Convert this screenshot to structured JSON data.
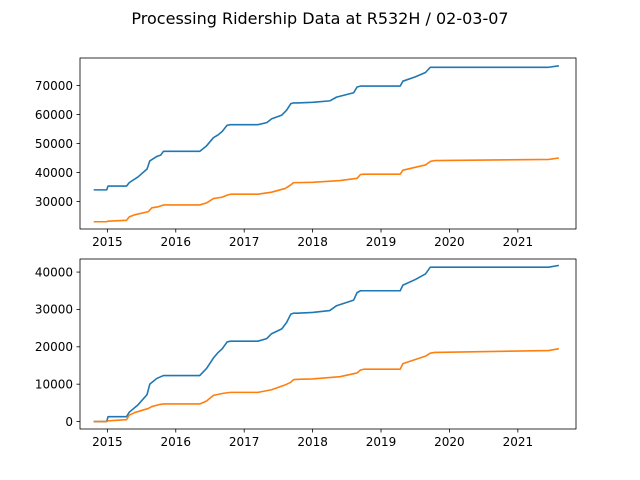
{
  "figure": {
    "title": "Processing Ridership Data at R532H / 02-03-07"
  },
  "colors": {
    "series1": "#1f77b4",
    "series2": "#ff7f0e"
  },
  "chart_data": [
    {
      "type": "line",
      "title": "",
      "xlabel": "",
      "ylabel": "",
      "xlim": [
        2014.6,
        2021.85
      ],
      "ylim": [
        20500,
        79500
      ],
      "xticks": [
        2015,
        2016,
        2017,
        2018,
        2019,
        2020,
        2021
      ],
      "xtick_labels": [
        "2015",
        "2016",
        "2017",
        "2018",
        "2019",
        "2020",
        "2021"
      ],
      "yticks": [
        30000,
        40000,
        50000,
        60000,
        70000
      ],
      "ytick_labels": [
        "30000",
        "40000",
        "50000",
        "60000",
        "70000"
      ],
      "grid": false,
      "series": [
        {
          "x": [
            2014.8,
            2014.99,
            2015.01,
            2015.28,
            2015.32,
            2015.45,
            2015.58,
            2015.62,
            2015.72,
            2015.78,
            2015.82,
            2016.35,
            2016.45,
            2016.55,
            2016.62,
            2016.68,
            2016.75,
            2016.8,
            2017.2,
            2017.33,
            2017.4,
            2017.55,
            2017.62,
            2017.68,
            2017.72,
            2017.78,
            2018.0,
            2018.25,
            2018.35,
            2018.6,
            2018.65,
            2018.7,
            2018.75,
            2019.28,
            2019.32,
            2019.5,
            2019.65,
            2019.72,
            2019.78,
            2021.45,
            2021.6
          ],
          "y": [
            34000,
            34000,
            35300,
            35300,
            36500,
            38500,
            41200,
            44000,
            45500,
            46000,
            47300,
            47300,
            49200,
            52000,
            53000,
            54200,
            56300,
            56500,
            56500,
            57200,
            58500,
            59800,
            61500,
            63700,
            64000,
            64000,
            64200,
            64700,
            66000,
            67500,
            69500,
            69800,
            69800,
            69800,
            71500,
            73000,
            74500,
            76300,
            76300,
            76300,
            76800
          ]
        },
        {
          "x": [
            2014.8,
            2014.99,
            2015.01,
            2015.28,
            2015.32,
            2015.4,
            2015.6,
            2015.65,
            2015.75,
            2015.82,
            2016.35,
            2016.45,
            2016.55,
            2016.68,
            2016.75,
            2016.8,
            2017.2,
            2017.4,
            2017.6,
            2017.68,
            2017.72,
            2017.78,
            2018.0,
            2018.4,
            2018.65,
            2018.7,
            2018.75,
            2019.28,
            2019.32,
            2019.65,
            2019.72,
            2019.78,
            2021.45,
            2021.6
          ],
          "y": [
            23000,
            23000,
            23200,
            23500,
            24700,
            25400,
            26500,
            27800,
            28200,
            28800,
            28800,
            29500,
            31000,
            31500,
            32200,
            32500,
            32500,
            33200,
            34500,
            35700,
            36500,
            36500,
            36600,
            37200,
            38000,
            39300,
            39400,
            39400,
            40800,
            42600,
            43800,
            44100,
            44500,
            45000
          ]
        }
      ]
    },
    {
      "type": "line",
      "title": "",
      "xlabel": "",
      "ylabel": "",
      "xlim": [
        2014.6,
        2021.85
      ],
      "ylim": [
        -2000,
        43500
      ],
      "xticks": [
        2015,
        2016,
        2017,
        2018,
        2019,
        2020,
        2021
      ],
      "xtick_labels": [
        "2015",
        "2016",
        "2017",
        "2018",
        "2019",
        "2020",
        "2021"
      ],
      "yticks": [
        0,
        10000,
        20000,
        30000,
        40000
      ],
      "ytick_labels": [
        "0",
        "10000",
        "20000",
        "30000",
        "40000"
      ],
      "grid": false,
      "series": [
        {
          "x": [
            2014.8,
            2014.99,
            2015.01,
            2015.28,
            2015.32,
            2015.45,
            2015.58,
            2015.62,
            2015.72,
            2015.78,
            2015.82,
            2016.35,
            2016.45,
            2016.55,
            2016.62,
            2016.68,
            2016.75,
            2016.8,
            2017.2,
            2017.33,
            2017.4,
            2017.55,
            2017.62,
            2017.68,
            2017.72,
            2017.78,
            2018.0,
            2018.25,
            2018.35,
            2018.6,
            2018.65,
            2018.7,
            2018.75,
            2019.28,
            2019.32,
            2019.5,
            2019.65,
            2019.72,
            2019.78,
            2021.45,
            2021.6
          ],
          "y": [
            0,
            0,
            1300,
            1300,
            2500,
            4500,
            7200,
            10000,
            11500,
            12000,
            12300,
            12300,
            14200,
            17000,
            18500,
            19500,
            21300,
            21500,
            21500,
            22200,
            23500,
            24800,
            26500,
            28700,
            29000,
            29000,
            29200,
            29700,
            31000,
            32500,
            34500,
            35000,
            35000,
            35000,
            36500,
            38000,
            39500,
            41300,
            41300,
            41300,
            41800
          ]
        },
        {
          "x": [
            2014.8,
            2014.99,
            2015.01,
            2015.28,
            2015.32,
            2015.4,
            2015.6,
            2015.65,
            2015.75,
            2015.82,
            2016.35,
            2016.45,
            2016.55,
            2016.68,
            2016.75,
            2016.8,
            2017.2,
            2017.4,
            2017.6,
            2017.68,
            2017.72,
            2017.78,
            2018.0,
            2018.4,
            2018.65,
            2018.7,
            2018.75,
            2019.28,
            2019.32,
            2019.65,
            2019.72,
            2019.78,
            2021.45,
            2021.6
          ],
          "y": [
            0,
            0,
            200,
            500,
            1700,
            2400,
            3500,
            4000,
            4500,
            4700,
            4700,
            5500,
            7000,
            7500,
            7700,
            7800,
            7800,
            8500,
            9800,
            10500,
            11200,
            11300,
            11400,
            12000,
            13000,
            13800,
            14000,
            14000,
            15500,
            17500,
            18300,
            18500,
            19000,
            19500
          ]
        }
      ]
    }
  ]
}
